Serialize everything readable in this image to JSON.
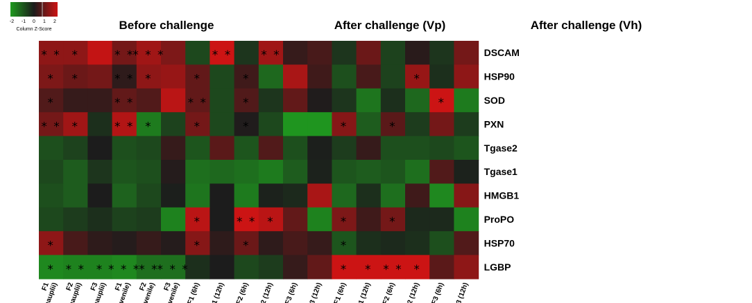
{
  "chart_data": {
    "type": "heatmap",
    "group_titles": [
      "Before challenge",
      "After challenge (Vp)",
      "After challenge (Vh)"
    ],
    "columns": [
      [
        "F1",
        "(nauplii)"
      ],
      [
        "F2",
        "(nauplii)"
      ],
      [
        "F3",
        "(nauplii)"
      ],
      [
        "F1",
        "(juvenile)"
      ],
      [
        "F2",
        "(juvenile)"
      ],
      [
        "F3",
        "(juvenile)"
      ],
      [
        "F1 (6h)"
      ],
      [
        "F1 (12h)"
      ],
      [
        "F2 (6h)"
      ],
      [
        "F2 (12h)"
      ],
      [
        "F3 (6h)"
      ],
      [
        "F3 (12h)"
      ],
      [
        "F1 (6h)"
      ],
      [
        "F1 (12h)"
      ],
      [
        "F2 (6h)"
      ],
      [
        "F2 (12h)"
      ],
      [
        "F3 (6h)"
      ],
      [
        "F3 (12h)"
      ]
    ],
    "rows": [
      "DSCAM",
      "HSP90",
      "SOD",
      "PXN",
      "Tgase2",
      "Tgase1",
      "HMGB1",
      "ProPO",
      "HSP70",
      "LGBP"
    ],
    "values": [
      [
        1.3,
        1.3,
        1.9,
        1.0,
        1.5,
        1.1,
        -0.7,
        2.0,
        -0.4,
        1.5,
        0.3,
        0.5,
        -0.4,
        0.9,
        -0.6,
        0.15,
        -0.4,
        1.0
      ],
      [
        1.1,
        0.9,
        1.0,
        0.2,
        1.3,
        1.4,
        0.8,
        -0.7,
        0.4,
        -1.2,
        1.6,
        0.4,
        -0.8,
        0.5,
        -0.6,
        1.4,
        -0.3,
        1.3
      ],
      [
        0.6,
        0.3,
        0.3,
        0.8,
        0.6,
        1.8,
        0.8,
        -0.7,
        0.6,
        -0.4,
        0.8,
        0.05,
        -0.4,
        -1.4,
        -0.3,
        -1.2,
        2.0,
        -1.5
      ],
      [
        1.0,
        1.5,
        -0.3,
        1.7,
        -1.5,
        -0.6,
        1.0,
        -0.7,
        0.05,
        -0.7,
        -1.9,
        -1.9,
        1.2,
        -1.0,
        0.7,
        -0.5,
        1.0,
        -0.5
      ],
      [
        -0.8,
        -0.6,
        0.0,
        -0.8,
        -0.7,
        0.3,
        -0.9,
        0.7,
        -0.9,
        0.6,
        -0.8,
        -0.05,
        -0.5,
        0.3,
        -0.8,
        -0.8,
        -0.7,
        -0.9
      ],
      [
        -0.7,
        -1.0,
        -0.4,
        -0.9,
        -0.8,
        0.1,
        -1.3,
        -1.2,
        -1.3,
        -1.5,
        -1.0,
        -0.1,
        -0.9,
        -1.0,
        -0.9,
        -1.3,
        0.6,
        -0.1
      ],
      [
        -0.8,
        -1.0,
        0.0,
        -1.1,
        -0.7,
        -0.05,
        -1.4,
        0.0,
        -1.5,
        -0.1,
        -0.2,
        1.6,
        -1.2,
        -0.3,
        -1.3,
        0.4,
        -1.7,
        1.2
      ],
      [
        -0.7,
        -0.5,
        -0.3,
        -0.6,
        -0.5,
        -1.6,
        1.8,
        0.0,
        2.0,
        1.8,
        0.8,
        -1.6,
        1.1,
        0.4,
        1.0,
        -0.2,
        -0.2,
        -1.6
      ],
      [
        1.3,
        0.5,
        0.2,
        0.1,
        0.3,
        0.1,
        1.2,
        0.2,
        0.9,
        0.2,
        0.5,
        0.3,
        -0.9,
        -0.3,
        -0.2,
        -0.3,
        -0.8,
        0.6
      ],
      [
        -1.7,
        -1.6,
        -1.6,
        -1.7,
        -1.3,
        -1.3,
        -0.3,
        0.0,
        -0.7,
        -0.5,
        0.3,
        0.8,
        2.0,
        2.0,
        2.0,
        2.0,
        0.7,
        1.3
      ]
    ],
    "stars": [
      [
        "**",
        "*",
        "",
        "**",
        "***",
        "",
        "",
        "**",
        "",
        "**",
        "",
        "",
        "",
        "",
        "",
        "",
        "",
        ""
      ],
      [
        "*",
        "*",
        "",
        "**",
        "*",
        "",
        "*",
        "",
        "*",
        "",
        "",
        "",
        "",
        "",
        "",
        "*",
        "",
        ""
      ],
      [
        "*",
        "",
        "",
        "**",
        "",
        "",
        "**",
        "",
        "*",
        "",
        "",
        "",
        "",
        "",
        "",
        "",
        "*",
        ""
      ],
      [
        "**",
        "*",
        "",
        "**",
        "*",
        "",
        "*",
        "",
        "*",
        "",
        "",
        "",
        "*",
        "",
        "*",
        "",
        "",
        ""
      ],
      [
        "",
        "",
        "",
        "",
        "",
        "",
        "",
        "",
        "",
        "",
        "",
        "",
        "",
        "",
        "",
        "",
        "",
        ""
      ],
      [
        "",
        "",
        "",
        "",
        "",
        "",
        "",
        "",
        "",
        "",
        "",
        "",
        "",
        "",
        "",
        "",
        "",
        ""
      ],
      [
        "",
        "",
        "",
        "",
        "",
        "",
        "",
        "",
        "",
        "",
        "",
        "",
        "",
        "",
        "",
        "",
        "",
        ""
      ],
      [
        "",
        "",
        "",
        "",
        "",
        "",
        "*",
        "",
        "**",
        "*",
        "",
        "",
        "*",
        "",
        "*",
        "",
        "",
        ""
      ],
      [
        "*",
        "",
        "",
        "",
        "",
        "",
        "*",
        "",
        "*",
        "",
        "",
        "",
        "*",
        "",
        "",
        "",
        "",
        ""
      ],
      [
        "*",
        "**",
        "*",
        "***",
        "**",
        "***",
        "",
        "",
        "",
        "",
        "",
        "",
        "*",
        "*",
        "**",
        "*",
        "",
        ""
      ]
    ],
    "color_key": {
      "title": "Column Z-Score",
      "ticks": [
        "-2",
        "-1",
        "0",
        "1",
        "2"
      ],
      "low_color": "#1f9b1f",
      "mid_color": "#1c1c1c",
      "high_color": "#cc1414",
      "range": [
        -2,
        2
      ]
    }
  }
}
